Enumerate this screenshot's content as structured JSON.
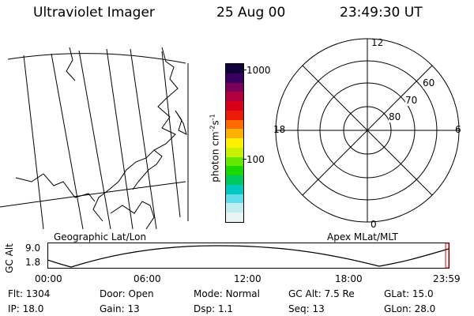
{
  "header": {
    "instrument": "Ultraviolet Imager",
    "date": "25 Aug 00",
    "time": "23:49:30 UT"
  },
  "colorbar": {
    "unit_main": "photon cm",
    "unit_sup1": "-2",
    "unit_mid": "s",
    "unit_sup2": "-1",
    "ticks": [
      "1000",
      "100"
    ],
    "colors_top_to_bottom": [
      "#11003a",
      "#3a0060",
      "#7a005c",
      "#b2003e",
      "#d70018",
      "#ee1a08",
      "#ff6a00",
      "#ffb000",
      "#fff000",
      "#c8f000",
      "#64e800",
      "#18d800",
      "#00c860",
      "#00c8c0",
      "#60dde8",
      "#c0eef0",
      "#e8f4f4"
    ]
  },
  "polar": {
    "labels": {
      "top": "12",
      "right": "6",
      "bottom": "0",
      "left": "18"
    },
    "rings": [
      "60",
      "70",
      "80"
    ]
  },
  "map_labels": {
    "left": "Geographic Lat/Lon",
    "right": "Apex MLat/MLT"
  },
  "orbit": {
    "axis_title": "GC Alt",
    "y_ticks": [
      "9.0",
      "1.8"
    ],
    "x_ticks": [
      "00:00",
      "06:00",
      "12:00",
      "18:00",
      "23:59"
    ]
  },
  "status": {
    "flt_label": "Flt:",
    "flt_value": "1304",
    "ip_label": "IP:",
    "ip_value": "18.0",
    "door_label": "Door:",
    "door_value": "Open",
    "gain_label": "Gain:",
    "gain_value": "13",
    "mode_label": "Mode:",
    "mode_value": "Normal",
    "dsp_label": "Dsp:",
    "dsp_value": "1.1",
    "gcalt_label": "GC Alt:",
    "gcalt_value": "7.5 Re",
    "seq_label": "Seq:",
    "seq_value": "13",
    "glat_label": "GLat:",
    "glat_value": "15.0",
    "glon_label": "GLon:",
    "glon_value": "28.0"
  }
}
